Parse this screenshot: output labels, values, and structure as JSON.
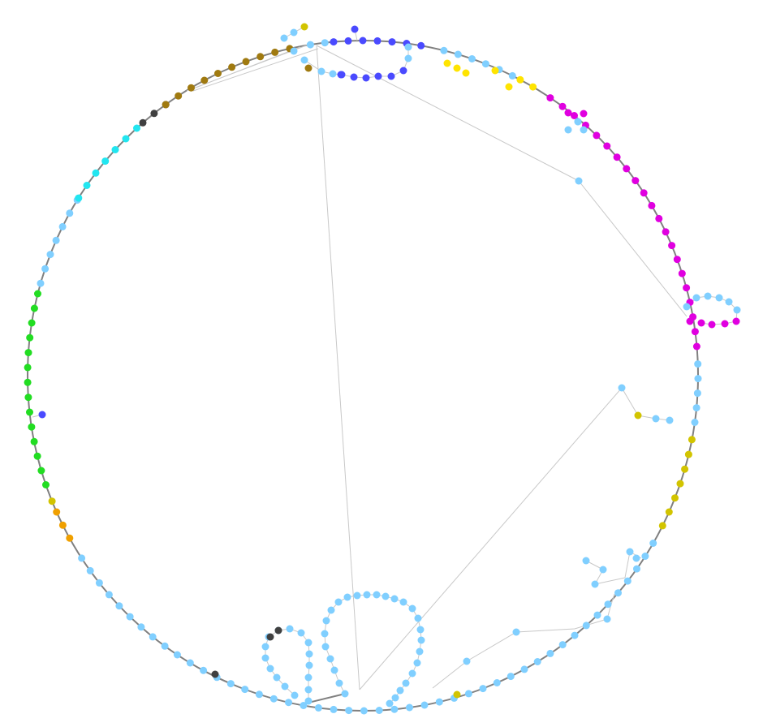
{
  "colors": {
    "background": "#ffffff",
    "backbone": "#808080",
    "cross_link": "#c8c8c8",
    "light_blue": "#80cfff",
    "blue": "#4a4aff",
    "yellow": "#ffe400",
    "olive_yellow": "#d2c400",
    "magenta": "#e000e0",
    "green": "#22dd22",
    "cyan": "#22e6f0",
    "brown": "#a07a10",
    "orange": "#f0a000",
    "dark_gray": "#404040"
  },
  "diagram": {
    "type": "circular-network",
    "description_visible_text": ""
  }
}
